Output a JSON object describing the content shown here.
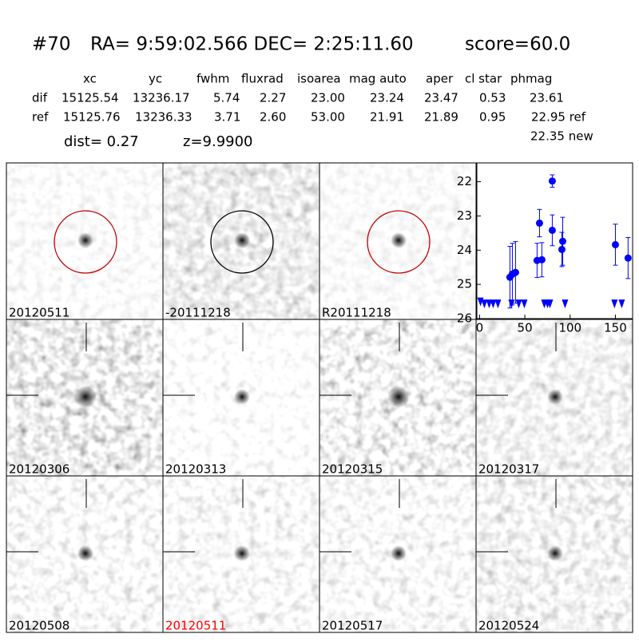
{
  "header": {
    "id": "#70",
    "coords": "RA= 9:59:02.566 DEC= 2:25:11.60",
    "score": "score=60.0"
  },
  "table": {
    "columns": [
      "xc",
      "yc",
      "fwhm",
      "fluxrad",
      "isoarea",
      "mag auto",
      "aper",
      "cl star",
      "phmag"
    ],
    "rows": [
      [
        "dif",
        "15125.54",
        "13236.17",
        "5.74",
        "2.27",
        "23.00",
        "23.24",
        "23.47",
        "0.53",
        "23.61"
      ],
      [
        "ref",
        "15125.76",
        "13236.33",
        "3.71",
        "2.60",
        "53.00",
        "21.91",
        "21.89",
        "0.95",
        "22.95 ref"
      ]
    ]
  },
  "notes": {
    "dist": "dist=  0.27",
    "z": "z=9.9900",
    "new": "22.35 new"
  },
  "panels": [
    {
      "label": "20120511"
    },
    {
      "label": "-20111218"
    },
    {
      "label": "R20111218"
    },
    {
      "label": "20120306"
    },
    {
      "label": "20120313"
    },
    {
      "label": "20120315"
    },
    {
      "label": "20120317"
    },
    {
      "label": "20120508"
    },
    {
      "label": "20120511",
      "color": "#ff0000"
    },
    {
      "label": "20120517"
    },
    {
      "label": "20120524"
    }
  ],
  "chart_data": {
    "type": "scatter",
    "xlim": [
      -3,
      169
    ],
    "xticks": [
      0,
      50,
      100,
      150
    ],
    "ylim": [
      26,
      21.45
    ],
    "yticks": [
      22,
      23,
      24,
      25,
      26
    ],
    "series": [
      {
        "marker": "circle",
        "color": "#0000ff",
        "x": [
          80.3,
          66.2,
          80.3,
          91.8,
          90.9,
          68.8,
          63.5,
          39.7,
          36.2,
          33.5,
          150,
          164
        ],
        "values": [
          21.98,
          23.21,
          23.42,
          23.74,
          23.98,
          24.28,
          24.3,
          24.65,
          24.7,
          24.79,
          23.84,
          24.23
        ],
        "errors": [
          0.18,
          0.4,
          0.45,
          0.7,
          0.5,
          0.5,
          0.5,
          0.9,
          0.9,
          0.9,
          0.6,
          0.6
        ]
      },
      {
        "marker": "triangle-down",
        "color": "#0000ff",
        "x": [
          1,
          5.3,
          10.6,
          15,
          20.3,
          35.3,
          43.3,
          49.4,
          71.5,
          75,
          77.7,
          94.4,
          149,
          157
        ],
        "values": [
          25.5,
          25.56,
          25.56,
          25.56,
          25.56,
          25.56,
          25.56,
          25.56,
          25.56,
          25.56,
          25.56,
          25.56,
          25.56,
          25.56
        ]
      }
    ]
  }
}
